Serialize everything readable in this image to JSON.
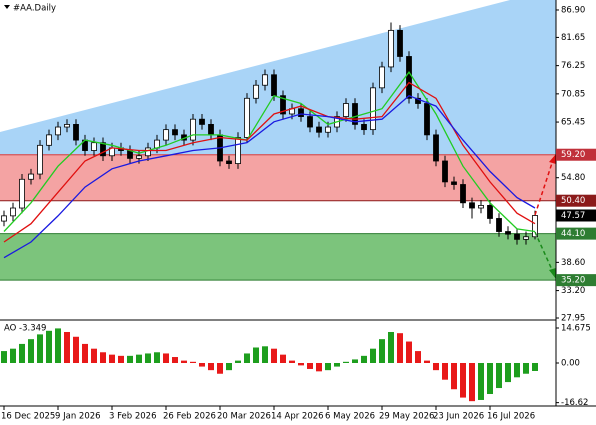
{
  "chart_data": [
    {
      "type": "candlestick",
      "title": "#AA.Daily",
      "categories": [
        "16 Dec 2025",
        null,
        null,
        null,
        null,
        null,
        "9 Jan 2026",
        null,
        null,
        null,
        null,
        null,
        "3 Feb 2026",
        null,
        null,
        null,
        null,
        null,
        "26 Feb 2026",
        null,
        null,
        null,
        null,
        null,
        "20 Mar 2026",
        null,
        null,
        null,
        null,
        null,
        "14 Apr 2026",
        null,
        null,
        null,
        null,
        null,
        "6 May 2026",
        null,
        null,
        null,
        null,
        null,
        "29 May 2026",
        null,
        null,
        null,
        null,
        null,
        "23 Jun 2026",
        null,
        null,
        null,
        null,
        null,
        "16 Jul 2026",
        null,
        null,
        null,
        null,
        null
      ],
      "open": [
        46.5,
        47.5,
        49,
        54.5,
        55.5,
        61,
        63,
        64.5,
        65,
        62,
        60,
        61.5,
        59,
        60.5,
        60,
        58.5,
        59,
        60.5,
        62,
        64,
        63,
        62,
        66,
        65,
        63,
        58,
        57.5,
        62.5,
        70,
        72.5,
        74.5,
        70.5,
        67,
        68,
        66.5,
        64.5,
        63.5,
        64.5,
        66.5,
        69,
        65,
        64,
        72,
        76,
        83,
        78,
        70,
        69,
        63,
        58,
        54,
        53.5,
        50,
        49,
        49.5,
        47,
        44.5,
        44,
        43,
        43.5
      ],
      "high": [
        48.5,
        50,
        55.5,
        56.5,
        62,
        64,
        65.5,
        66,
        66,
        63,
        62.5,
        62.5,
        61.5,
        61.5,
        61,
        60,
        61.5,
        63,
        65,
        65,
        64,
        67,
        67,
        66,
        64,
        59,
        63.5,
        71,
        73.5,
        75.5,
        75.5,
        71.5,
        69,
        69,
        67.5,
        65.5,
        65.5,
        67.5,
        70,
        70,
        66,
        73,
        77,
        84.5,
        84,
        79,
        71,
        70,
        64,
        59,
        55,
        54.5,
        51,
        50.5,
        50.5,
        48,
        45.5,
        45,
        44.5,
        48.5
      ],
      "low": [
        45.5,
        46.5,
        48,
        53.5,
        54.5,
        60,
        62,
        63.5,
        61,
        59,
        59,
        58,
        58,
        59,
        57.5,
        57.5,
        58,
        59.5,
        61,
        62,
        61,
        61,
        64,
        62,
        57,
        56.5,
        56.5,
        61.5,
        69,
        71.5,
        69.5,
        66,
        66,
        65.5,
        63.5,
        62.5,
        62.5,
        63.5,
        65.5,
        64,
        63,
        63,
        71,
        75,
        77,
        69,
        68,
        62,
        57,
        53,
        52.5,
        49,
        47,
        48,
        46,
        43.5,
        43,
        42,
        42,
        43
      ],
      "close": [
        47.5,
        49,
        54.5,
        55.5,
        61,
        63,
        64.5,
        65,
        62,
        60,
        61.5,
        59,
        60.5,
        60,
        58.5,
        59,
        60.5,
        62,
        64,
        63,
        62,
        66,
        65,
        63,
        58,
        57.5,
        62.5,
        70,
        72.5,
        74.5,
        70.5,
        67,
        68,
        66.5,
        64.5,
        63.5,
        64.5,
        66.5,
        69,
        65,
        64,
        72,
        76,
        83,
        78,
        70,
        69,
        63,
        58,
        54,
        53.5,
        50,
        49,
        49.5,
        47,
        44.5,
        44,
        43,
        43.5,
        47.57
      ],
      "series": [
        {
          "color": "#22cc22",
          "x": [
            0,
            3,
            6,
            9,
            12,
            15,
            18,
            21,
            24,
            27,
            30,
            33,
            36,
            39,
            42,
            45,
            48,
            51,
            54,
            57,
            59
          ],
          "values": [
            44.5,
            50,
            57,
            62,
            61,
            59.5,
            61,
            63,
            63,
            62,
            70.5,
            69,
            65,
            66.5,
            68,
            75,
            67,
            57,
            50,
            45,
            44.5
          ]
        },
        {
          "color": "#e01010",
          "x": [
            0,
            3,
            6,
            9,
            12,
            15,
            18,
            21,
            24,
            27,
            30,
            33,
            36,
            39,
            42,
            45,
            48,
            51,
            54,
            57,
            59
          ],
          "values": [
            42.5,
            46,
            52,
            58,
            60.5,
            60,
            60,
            61.5,
            62.5,
            62,
            67,
            68.5,
            66.5,
            66,
            66.5,
            73,
            70,
            61,
            54,
            48,
            46
          ]
        },
        {
          "color": "#1a1ae0",
          "x": [
            0,
            3,
            6,
            9,
            12,
            15,
            18,
            21,
            24,
            27,
            30,
            33,
            36,
            39,
            42,
            45,
            48,
            51,
            54,
            57,
            59
          ],
          "values": [
            39.5,
            42.5,
            47.5,
            53,
            56.5,
            58,
            59,
            60,
            60.5,
            61.5,
            65.5,
            67,
            66.5,
            65.5,
            66,
            70.5,
            68.5,
            62,
            56,
            51,
            49
          ]
        }
      ],
      "ylim": [
        27.57,
        88.81
      ],
      "yticks": [
        {
          "value": 86.9,
          "label": "86.90"
        },
        81.65,
        76.25,
        70.85,
        65.45,
        {
          "value": 54.8,
          "label": "54.80"
        },
        {
          "value": 38.6,
          "label": "38.60"
        },
        {
          "value": 33.2,
          "label": "33.20"
        },
        27.95
      ],
      "levels": [
        {
          "value": 59.2,
          "label": "59.20",
          "color": "#c0303a",
          "zone_fill": "#f4a3a3"
        },
        {
          "value": 50.4,
          "label": "50.40",
          "color": "#8b1a1a"
        },
        {
          "value": 44.1,
          "label": "44.10",
          "color": "#2e7d32",
          "zone_fill": "#7cc47c"
        },
        {
          "value": 35.2,
          "label": "35.20",
          "color": "#2e7d32"
        }
      ],
      "current": {
        "value": 47.57,
        "label": "47.57",
        "color": "#000000"
      }
    },
    {
      "type": "bar",
      "title": "AO -3.349",
      "values": [
        5,
        6,
        8,
        10,
        12,
        13.5,
        14.5,
        13,
        11,
        8,
        6,
        4.5,
        3.5,
        3,
        3,
        3.5,
        4,
        4.5,
        4,
        2.5,
        1,
        0.5,
        -1.5,
        -3,
        -4.5,
        -3,
        1,
        4,
        6.5,
        7,
        6,
        3.5,
        1,
        -1,
        -2.5,
        -3.5,
        -3,
        -1.5,
        0.5,
        1.5,
        3,
        6,
        10,
        13,
        12.5,
        9,
        5,
        1,
        -3,
        -7,
        -11,
        -14.5,
        -16,
        -15.5,
        -13,
        -10.5,
        -8,
        -6,
        -4.5,
        -3.349
      ],
      "up_color": "#1e9e1e",
      "down_color": "#e81919",
      "ylim": [
        -18.03,
        17.19
      ],
      "yticks": [
        14.675,
        {
          "value": 0,
          "label": "0.00"
        },
        -16.62
      ]
    }
  ]
}
